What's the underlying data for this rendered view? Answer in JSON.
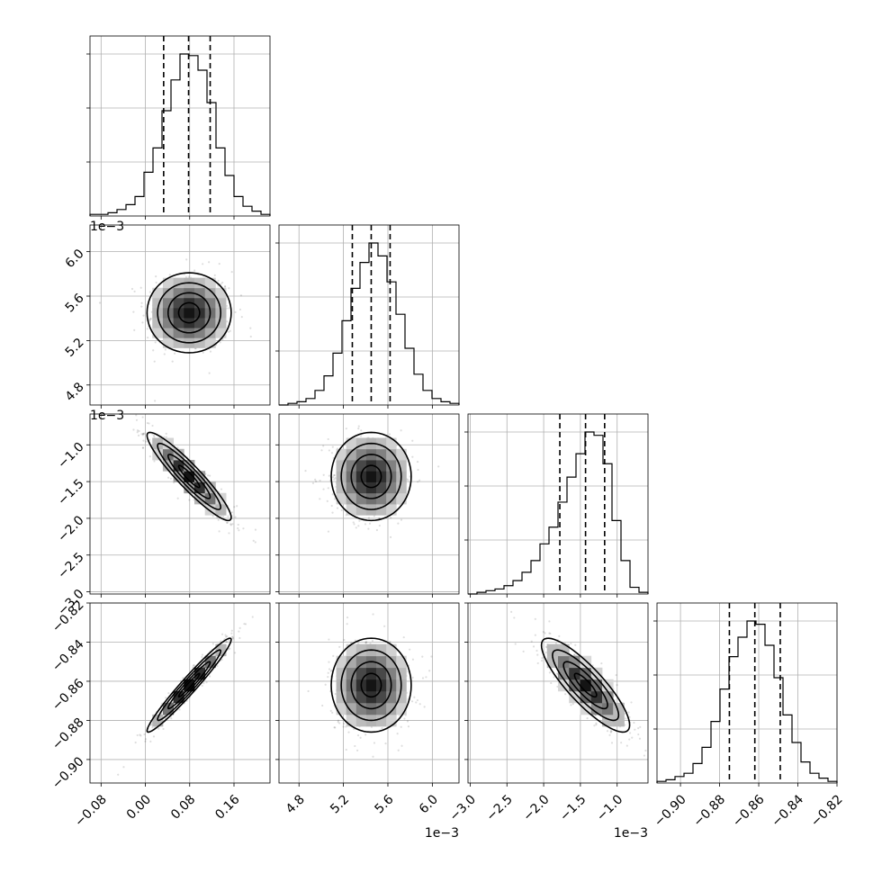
{
  "chart_data": {
    "type": "corner",
    "n_params": 4,
    "xlabels": [
      "",
      "",
      "",
      ""
    ],
    "params": [
      {
        "mean": 0.079,
        "sigma": 0.038,
        "range": [
          -0.1,
          0.225
        ],
        "ticks": [
          -0.08,
          0.0,
          0.08,
          0.16
        ],
        "tick_labels": [
          "−0.08",
          "0.00",
          "0.08",
          "0.16"
        ],
        "quantiles": [
          0.033,
          0.078,
          0.117
        ],
        "offset_label": "",
        "hist": [
          1,
          1,
          2,
          4,
          7,
          12,
          27,
          42,
          65,
          84,
          100,
          99,
          90,
          70,
          42,
          25,
          12,
          6,
          3,
          1
        ]
      },
      {
        "mean": 0.00545,
        "sigma": 0.00018,
        "range": [
          0.00462,
          0.00624
        ],
        "ticks": [
          0.0048,
          0.0052,
          0.0056,
          0.006
        ],
        "tick_labels": [
          "4.8",
          "5.2",
          "5.6",
          "6.0"
        ],
        "quantiles": [
          0.00528,
          0.00545,
          0.00562
        ],
        "offset_label": "1e−3",
        "hist": [
          0,
          1,
          2,
          4,
          9,
          18,
          32,
          52,
          72,
          88,
          100,
          92,
          76,
          56,
          35,
          19,
          9,
          4,
          2,
          1
        ]
      },
      {
        "mean": -0.00143,
        "sigma": 0.0003,
        "range": [
          -0.00303,
          -0.00058
        ],
        "ticks": [
          -0.003,
          -0.0025,
          -0.002,
          -0.0015,
          -0.001
        ],
        "tick_labels": [
          "−3.0",
          "−2.5",
          "−2.0",
          "−1.5",
          "−1.0"
        ],
        "quantiles": [
          -0.00178,
          -0.00143,
          -0.00117
        ],
        "offset_label": "1e−3",
        "hist": [
          0,
          1,
          2,
          3,
          5,
          8,
          13,
          20,
          30,
          40,
          55,
          70,
          84,
          97,
          95,
          78,
          44,
          20,
          4,
          1
        ]
      },
      {
        "mean": -0.862,
        "sigma": 0.012,
        "range": [
          -0.912,
          -0.82
        ],
        "ticks": [
          -0.9,
          -0.88,
          -0.86,
          -0.84,
          -0.82
        ],
        "tick_labels": [
          "−0.90",
          "−0.88",
          "−0.86",
          "−0.84",
          "−0.82"
        ],
        "quantiles": [
          -0.875,
          -0.862,
          -0.849
        ],
        "offset_label": "",
        "hist": [
          1,
          2,
          4,
          6,
          12,
          22,
          38,
          58,
          78,
          90,
          100,
          98,
          85,
          65,
          42,
          25,
          13,
          6,
          3,
          1
        ]
      }
    ],
    "correlations": {
      "1-0": 0.0,
      "2-0": -0.93,
      "2-1": 0.0,
      "3-0": 0.97,
      "3-1": 0.0,
      "3-2": -0.85
    },
    "contour_levels_sigma": [
      0.5,
      1.0,
      1.5,
      2.0
    ],
    "grid": true
  }
}
